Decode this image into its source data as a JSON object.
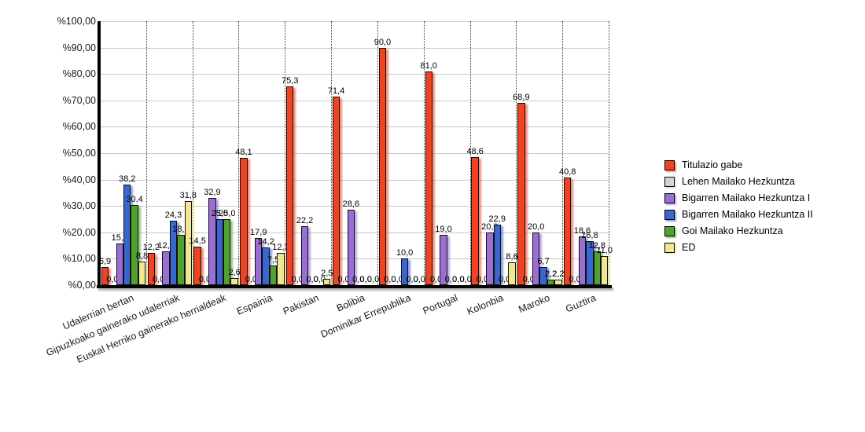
{
  "chart_data": {
    "type": "bar",
    "title": "",
    "xlabel": "",
    "ylabel": "",
    "ylim": [
      0,
      100
    ],
    "grid": "horizontal-solid-and-vertical-dotted-group-separators",
    "legend_position": "right",
    "y_ticks": [
      "%0,00",
      "%10,00",
      "%20,00",
      "%30,00",
      "%40,00",
      "%50,00",
      "%60,00",
      "%70,00",
      "%80,00",
      "%90,00",
      "%100,00"
    ],
    "categories": [
      "Udalerrian bertan",
      "Gipuzkoako gainerako udalerriak",
      "Euskal Herriko gainerako herrialdeak",
      "Espainia",
      "Pakistan",
      "Bolibia",
      "Dominikar Errepublika",
      "Portugal",
      "Kolonbia",
      "Maroko",
      "Guztira"
    ],
    "series": [
      {
        "name": "Titulazio gabe",
        "color": "#ee4423",
        "values": [
          6.9,
          12.2,
          14.5,
          48.1,
          75.3,
          71.4,
          90.0,
          81.0,
          48.6,
          68.9,
          40.8
        ]
      },
      {
        "name": "Lehen Mailako Hezkuntza",
        "color": "#d3d3d3",
        "values": [
          0.0,
          0.0,
          0.0,
          0.0,
          0.0,
          0.0,
          0.0,
          0.0,
          0.0,
          0.0,
          0.0
        ]
      },
      {
        "name": "Bigarren Mailako Hezkuntza I",
        "color": "#9a6fd4",
        "values": [
          15.7,
          12.8,
          32.9,
          17.9,
          22.2,
          28.6,
          0.0,
          19.0,
          20.0,
          20.0,
          18.6
        ]
      },
      {
        "name": "Bigarren Mailako Hezkuntza II",
        "color": "#3a67cf",
        "values": [
          38.2,
          24.3,
          25.0,
          14.2,
          0.0,
          0.0,
          10.0,
          0.0,
          22.9,
          6.7,
          16.8
        ]
      },
      {
        "name": "Goi Mailako Hezkuntza",
        "color": "#4fa22f",
        "values": [
          30.4,
          18.9,
          25.0,
          7.5,
          0.0,
          0.0,
          0.0,
          0.0,
          0.0,
          2.2,
          12.8
        ]
      },
      {
        "name": "ED",
        "color": "#f1e793",
        "values": [
          8.8,
          31.8,
          2.6,
          12.3,
          2.5,
          0.0,
          0.0,
          0.0,
          8.6,
          2.2,
          11.0
        ]
      }
    ],
    "value_label_format": "decimal-comma-one-digit",
    "axis_color": "#000000",
    "gridline_color": "#c9c9c9"
  }
}
